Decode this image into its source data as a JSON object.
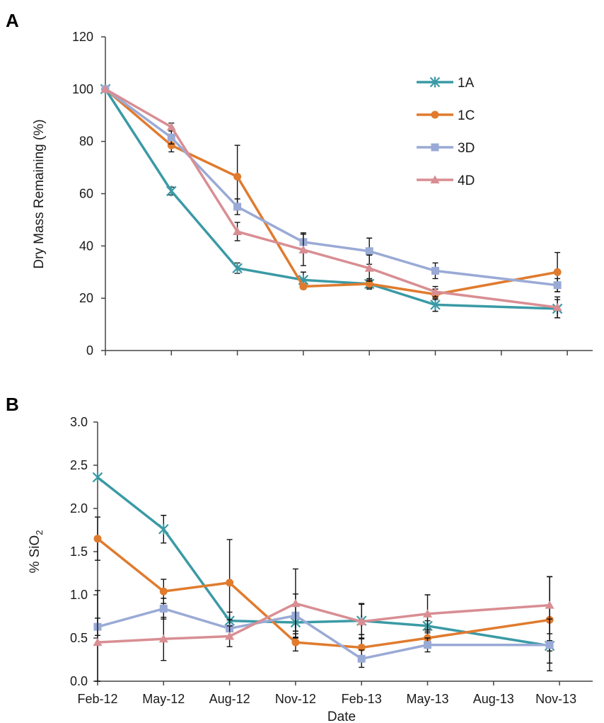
{
  "chart_data": [
    {
      "type": "line",
      "panel_label": "A",
      "ylabel": "Dry Mass Remaining (%)",
      "ylim": [
        0,
        120
      ],
      "yticks": [
        0,
        20,
        40,
        60,
        80,
        100,
        120
      ],
      "grid": false,
      "legend_position": "top-right",
      "series": [
        {
          "name": "1A",
          "color": "#3a9aa5",
          "marker": "star",
          "x": [
            0,
            1,
            2,
            3,
            4,
            5,
            6.85
          ],
          "values": [
            100,
            61,
            31.5,
            27,
            25.5,
            17.5,
            16
          ],
          "errors": [
            0,
            1.5,
            2,
            3,
            2,
            2.5,
            3.5
          ]
        },
        {
          "name": "1C",
          "color": "#e07b2e",
          "marker": "circle",
          "x": [
            0,
            1,
            2,
            3,
            4,
            5,
            6.85
          ],
          "values": [
            100,
            78.5,
            66.5,
            24.5,
            25.5,
            21.5,
            30
          ],
          "errors": [
            0,
            2.5,
            12,
            1,
            1.5,
            2,
            7.5
          ]
        },
        {
          "name": "3D",
          "color": "#9aaad6",
          "marker": "square",
          "x": [
            0,
            1,
            2,
            3,
            4,
            5,
            6.85
          ],
          "values": [
            100,
            81.5,
            55,
            41.5,
            38,
            30.5,
            25
          ],
          "errors": [
            0,
            2.5,
            3,
            3.5,
            5,
            3,
            2.5
          ]
        },
        {
          "name": "4D",
          "color": "#d88e93",
          "marker": "triangle",
          "x": [
            0,
            1,
            2,
            3,
            4,
            5,
            6.85
          ],
          "values": [
            100,
            85.5,
            45.5,
            38.5,
            31.5,
            22.5,
            16.5
          ],
          "errors": [
            0,
            1.5,
            3.5,
            6,
            5,
            2,
            4
          ]
        }
      ]
    },
    {
      "type": "line",
      "panel_label": "B",
      "ylabel_main": "% SiO",
      "ylabel_sub": "2",
      "xlabel": "Date",
      "categories": [
        "Feb-12",
        "May-12",
        "Aug-12",
        "Nov-12",
        "Feb-13",
        "May-13",
        "Aug-13",
        "Nov-13"
      ],
      "ylim": [
        0,
        3.0
      ],
      "yticks": [
        "0.0",
        "0.5",
        "1.0",
        "1.5",
        "2.0",
        "2.5",
        "3.0"
      ],
      "grid": false,
      "series": [
        {
          "name": "1A",
          "color": "#3a9aa5",
          "marker": "star",
          "x": [
            0,
            1,
            2,
            3,
            4,
            5,
            6.85
          ],
          "values": [
            2.36,
            1.76,
            0.7,
            0.68,
            0.7,
            0.64,
            0.41
          ],
          "errors": [
            0,
            0.16,
            0.1,
            0.1,
            0.2,
            0.06,
            0.06
          ]
        },
        {
          "name": "1C",
          "color": "#e07b2e",
          "marker": "circle",
          "x": [
            0,
            1,
            2,
            3,
            4,
            5,
            6.85
          ],
          "values": [
            1.65,
            1.04,
            1.14,
            0.45,
            0.39,
            0.5,
            0.71
          ],
          "errors": [
            0.25,
            0.14,
            0.5,
            0.1,
            0.15,
            0.1,
            0.5
          ]
        },
        {
          "name": "3D",
          "color": "#9aaad6",
          "marker": "square",
          "x": [
            0,
            1,
            2,
            3,
            4,
            5,
            6.85
          ],
          "values": [
            0.63,
            0.84,
            0.61,
            0.76,
            0.26,
            0.42,
            0.42
          ],
          "errors": [
            0.1,
            0.12,
            0.1,
            0.25,
            0.1,
            0.08,
            0.3
          ]
        },
        {
          "name": "4D",
          "color": "#d88e93",
          "marker": "triangle",
          "x": [
            0,
            1,
            2,
            3,
            4,
            5,
            6.85
          ],
          "values": [
            0.45,
            0.49,
            0.52,
            0.9,
            0.69,
            0.78,
            0.88
          ],
          "errors": [
            0.6,
            0.25,
            0.12,
            0.4,
            0.2,
            0.22,
            0.33
          ]
        }
      ]
    }
  ]
}
